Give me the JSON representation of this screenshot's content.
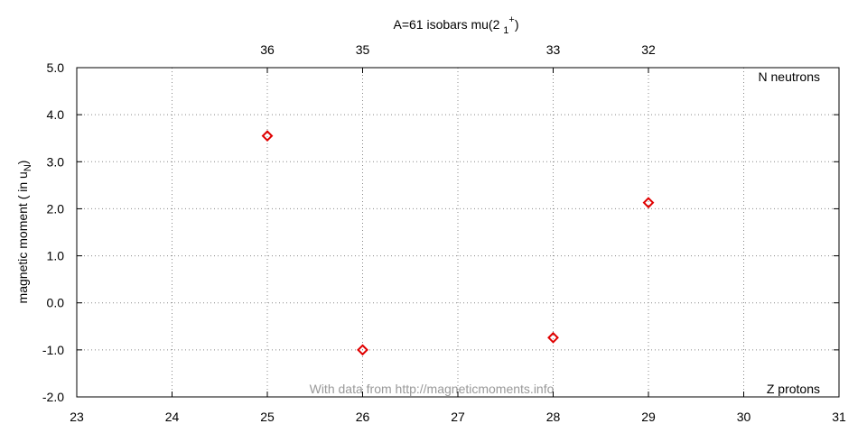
{
  "chart_data": {
    "type": "scatter",
    "title": {
      "text": "A=61 isobars mu(2 ",
      "sub": "1",
      "sup": "+",
      "end": ")"
    },
    "y_label": {
      "text": "magnetic moment ( in u",
      "sub": "N",
      "end": ")"
    },
    "x_label": "Z protons",
    "x2_label": "N neutrons",
    "annotation": "With data from http://magneticmoments.info",
    "series": [
      {
        "color": "#e00000",
        "x": [
          25,
          26,
          28,
          29
        ],
        "values": [
          3.55,
          -1.0,
          -0.74,
          2.13
        ]
      }
    ],
    "xlim": [
      23,
      31
    ],
    "xticks": [
      23,
      24,
      25,
      26,
      27,
      28,
      29,
      30,
      31
    ],
    "ylim": [
      -2,
      5
    ],
    "yticks": [
      {
        "value": -2,
        "label": "-2.0"
      },
      {
        "value": -1,
        "label": "-1.0"
      },
      {
        "value": 0,
        "label": "0.0"
      },
      {
        "value": 1,
        "label": "1.0"
      },
      {
        "value": 2,
        "label": "2.0"
      },
      {
        "value": 3,
        "label": "3.0"
      },
      {
        "value": 4,
        "label": "4.0"
      },
      {
        "value": 5,
        "label": "5.0"
      }
    ],
    "x2ticks": [
      {
        "value": 25,
        "label": "36"
      },
      {
        "value": 26,
        "label": "35"
      },
      {
        "value": 28,
        "label": "33"
      },
      {
        "value": 29,
        "label": "32"
      }
    ],
    "grid": true
  }
}
